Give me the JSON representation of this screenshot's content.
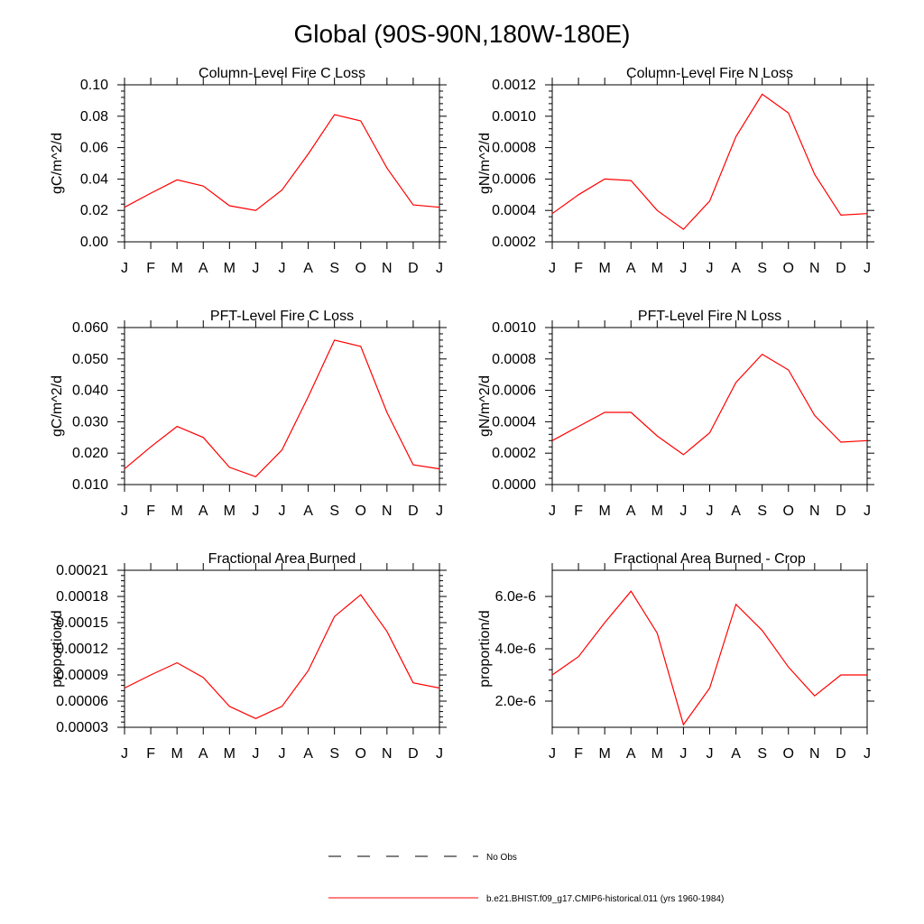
{
  "figure": {
    "title": "Global (90S-90N,180W-180E)"
  },
  "chart_data": [
    {
      "type": "line",
      "title": "Column-Level Fire C Loss",
      "ylabel": "gC/m^2/d",
      "x": [
        "J",
        "F",
        "M",
        "A",
        "M",
        "J",
        "J",
        "A",
        "S",
        "O",
        "N",
        "D",
        "J"
      ],
      "ylim": [
        0.0,
        0.1
      ],
      "yticks": [
        "0.00",
        "0.02",
        "0.04",
        "0.06",
        "0.08",
        "0.10"
      ],
      "yticks_values": [
        0.0,
        0.02,
        0.04,
        0.06,
        0.08,
        0.1
      ],
      "series": [
        {
          "values": [
            0.022,
            0.031,
            0.0395,
            0.0355,
            0.023,
            0.02,
            0.033,
            0.056,
            0.081,
            0.077,
            0.047,
            0.0235,
            0.022
          ],
          "color": "#ff0000"
        }
      ]
    },
    {
      "type": "line",
      "title": "Column-Level Fire N Loss",
      "ylabel": "gN/m^2/d",
      "x": [
        "J",
        "F",
        "M",
        "A",
        "M",
        "J",
        "J",
        "A",
        "S",
        "O",
        "N",
        "D",
        "J"
      ],
      "ylim": [
        0.0002,
        0.0012
      ],
      "yticks": [
        "0.0002",
        "0.0004",
        "0.0006",
        "0.0008",
        "0.0010",
        "0.0012"
      ],
      "yticks_values": [
        0.0002,
        0.0004,
        0.0006,
        0.0008,
        0.001,
        0.0012
      ],
      "series": [
        {
          "values": [
            0.00038,
            0.0005,
            0.0006,
            0.00059,
            0.0004,
            0.00028,
            0.00046,
            0.00087,
            0.00114,
            0.00102,
            0.00063,
            0.00037,
            0.00038
          ],
          "color": "#ff0000"
        }
      ]
    },
    {
      "type": "line",
      "title": "PFT-Level Fire C Loss",
      "ylabel": "gC/m^2/d",
      "x": [
        "J",
        "F",
        "M",
        "A",
        "M",
        "J",
        "J",
        "A",
        "S",
        "O",
        "N",
        "D",
        "J"
      ],
      "ylim": [
        0.01,
        0.06
      ],
      "yticks": [
        "0.010",
        "0.020",
        "0.030",
        "0.040",
        "0.050",
        "0.060"
      ],
      "yticks_values": [
        0.01,
        0.02,
        0.03,
        0.04,
        0.05,
        0.06
      ],
      "series": [
        {
          "values": [
            0.015,
            0.022,
            0.0285,
            0.025,
            0.0155,
            0.0125,
            0.021,
            0.038,
            0.056,
            0.054,
            0.033,
            0.0163,
            0.015
          ],
          "color": "#ff0000"
        }
      ]
    },
    {
      "type": "line",
      "title": "PFT-Level Fire N Loss",
      "ylabel": "gN/m^2/d",
      "x": [
        "J",
        "F",
        "M",
        "A",
        "M",
        "J",
        "J",
        "A",
        "S",
        "O",
        "N",
        "D",
        "J"
      ],
      "ylim": [
        0.0,
        0.001
      ],
      "yticks": [
        "0.0000",
        "0.0002",
        "0.0004",
        "0.0006",
        "0.0008",
        "0.0010"
      ],
      "yticks_values": [
        0.0,
        0.0002,
        0.0004,
        0.0006,
        0.0008,
        0.001
      ],
      "series": [
        {
          "values": [
            0.00028,
            0.00037,
            0.00046,
            0.00046,
            0.00031,
            0.00019,
            0.00033,
            0.00065,
            0.00083,
            0.00073,
            0.00044,
            0.00027,
            0.00028
          ],
          "color": "#ff0000"
        }
      ]
    },
    {
      "type": "line",
      "title": "Fractional Area Burned",
      "ylabel": "proportion/d",
      "x": [
        "J",
        "F",
        "M",
        "A",
        "M",
        "J",
        "J",
        "A",
        "S",
        "O",
        "N",
        "D",
        "J"
      ],
      "ylim": [
        3e-05,
        0.00021
      ],
      "yticks": [
        "0.00003",
        "0.00006",
        "0.00009",
        "0.00012",
        "0.00015",
        "0.00018",
        "0.00021"
      ],
      "yticks_values": [
        3e-05,
        6e-05,
        9e-05,
        0.00012,
        0.00015,
        0.00018,
        0.00021
      ],
      "series": [
        {
          "values": [
            7.5e-05,
            9e-05,
            0.000104,
            8.7e-05,
            5.4e-05,
            4e-05,
            5.4e-05,
            9.5e-05,
            0.000157,
            0.000182,
            0.00014,
            8.1e-05,
            7.5e-05
          ],
          "color": "#ff0000"
        }
      ]
    },
    {
      "type": "line",
      "title": "Fractional Area Burned - Crop",
      "ylabel": "proportion/d",
      "x": [
        "J",
        "F",
        "M",
        "A",
        "M",
        "J",
        "J",
        "A",
        "S",
        "O",
        "N",
        "D",
        "J"
      ],
      "ylim": [
        1e-06,
        7e-06
      ],
      "yticks": [
        "2.0e-6",
        "4.0e-6",
        "6.0e-6"
      ],
      "yticks_values": [
        2e-06,
        4e-06,
        6e-06
      ],
      "series": [
        {
          "values": [
            3e-06,
            3.7e-06,
            5e-06,
            6.2e-06,
            4.6e-06,
            1.1e-06,
            2.5e-06,
            5.7e-06,
            4.7e-06,
            3.3e-06,
            2.2e-06,
            3e-06,
            3e-06
          ],
          "color": "#ff0000"
        }
      ]
    }
  ],
  "legend": [
    {
      "label": "No Obs",
      "style": "dashed",
      "color": "#000000"
    },
    {
      "label": "b.e21.BHIST.f09_g17.CMIP6-historical.011 (yrs 1960-1984)",
      "style": "solid",
      "color": "#ff0000"
    }
  ]
}
